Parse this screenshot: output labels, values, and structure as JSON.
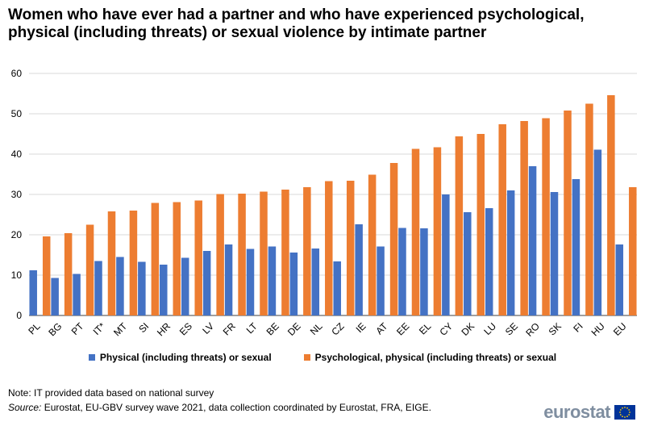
{
  "title": "Women who have ever had a partner and who have experienced psychological, physical (including threats) or sexual violence by intimate partner",
  "legend": {
    "physical": "Physical (including threats) or sexual",
    "psychological": "Psychological, physical (including threats) or sexual"
  },
  "note": "Note: IT provided data based on national survey",
  "source": {
    "label": "Source:",
    "text": " Eurostat, EU-GBV survey wave 2021, data collection coordinated by Eurostat, FRA, EIGE."
  },
  "logo": {
    "text": "eurostat"
  },
  "colors": {
    "physical": "#4472C4",
    "psychological": "#ED7D31",
    "grid": "#D9D9D9",
    "axis": "#404040"
  },
  "chart_data": {
    "type": "bar",
    "categories": [
      "PL",
      "BG",
      "PT",
      "IT*",
      "MT",
      "SI",
      "HR",
      "ES",
      "LV",
      "FR",
      "LT",
      "BE",
      "DE",
      "NL",
      "CZ",
      "IE",
      "AT",
      "EE",
      "EL",
      "CY",
      "DK",
      "LU",
      "SE",
      "RO",
      "SK",
      "FI",
      "HU",
      "EU"
    ],
    "series": [
      {
        "name": "Physical (including threats) or sexual",
        "values": [
          11.2,
          9.3,
          10.3,
          13.5,
          14.5,
          13.3,
          12.6,
          14.3,
          16.0,
          17.6,
          16.5,
          17.1,
          15.6,
          16.6,
          13.4,
          22.6,
          17.1,
          21.7,
          21.6,
          30.0,
          25.6,
          26.6,
          31.0,
          37.0,
          30.6,
          33.8,
          41.1,
          17.6
        ]
      },
      {
        "name": "Psychological, physical (including threats) or sexual",
        "values": [
          19.6,
          20.4,
          22.5,
          25.8,
          26.0,
          27.9,
          28.1,
          28.5,
          30.1,
          30.2,
          30.7,
          31.2,
          31.8,
          33.3,
          33.4,
          34.9,
          37.8,
          41.3,
          41.7,
          44.4,
          45.0,
          47.4,
          48.2,
          48.9,
          50.8,
          52.5,
          54.6,
          31.8
        ]
      }
    ],
    "ylim": [
      0,
      60
    ],
    "yticks": [
      0,
      10,
      20,
      30,
      40,
      50,
      60
    ],
    "grid": true,
    "legend_position": "bottom"
  }
}
